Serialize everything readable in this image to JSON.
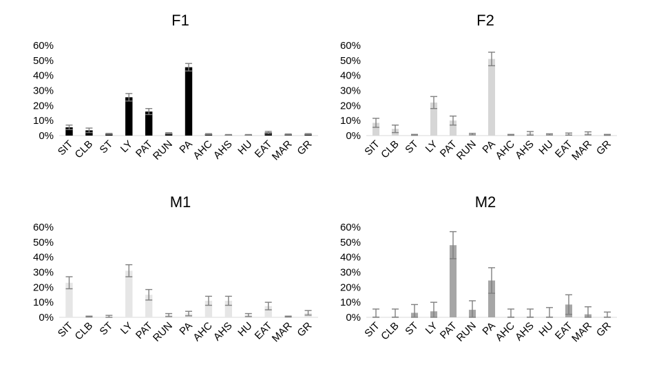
{
  "chart_data": [
    {
      "type": "bar",
      "title": "F1",
      "color": "#000000",
      "categories": [
        "SIT",
        "CLB",
        "ST",
        "LY",
        "PAT",
        "RUN",
        "PA",
        "AHC",
        "AHS",
        "HU",
        "EAT",
        "MAR",
        "GR"
      ],
      "values": [
        5.5,
        3.5,
        1.2,
        25.5,
        16,
        1.5,
        45.5,
        1,
        0.5,
        0.5,
        2,
        0.8,
        1
      ],
      "errors": [
        1.5,
        1.5,
        0.3,
        2.5,
        2,
        0.4,
        2.5,
        0.3,
        0.2,
        0.2,
        0.8,
        0.3,
        0.3
      ],
      "ylim": [
        0,
        60
      ],
      "yticks": [
        "0%",
        "10%",
        "20%",
        "30%",
        "40%",
        "50%",
        "60%"
      ],
      "ytick_values": [
        0,
        10,
        20,
        30,
        40,
        50,
        60
      ],
      "grid": false,
      "legend": "none"
    },
    {
      "type": "bar",
      "title": "F2",
      "color": "#d6d6d6",
      "categories": [
        "SIT",
        "CLB",
        "ST",
        "LY",
        "PAT",
        "RUN",
        "PA",
        "AHC",
        "AHS",
        "HU",
        "EAT",
        "MAR",
        "GR"
      ],
      "values": [
        8.5,
        4.5,
        0.5,
        22,
        10,
        1,
        51,
        0.5,
        1.5,
        0.8,
        1,
        1.5,
        0.5
      ],
      "errors": [
        3,
        2.5,
        0.3,
        4,
        3,
        0.5,
        4.5,
        0.3,
        1.2,
        0.4,
        0.7,
        1,
        0.3
      ],
      "ylim": [
        0,
        60
      ],
      "yticks": [
        "0%",
        "10%",
        "20%",
        "30%",
        "40%",
        "50%",
        "60%"
      ],
      "ytick_values": [
        0,
        10,
        20,
        30,
        40,
        50,
        60
      ],
      "grid": false,
      "legend": "none"
    },
    {
      "type": "bar",
      "title": "M1",
      "color": "#e6e6e6",
      "categories": [
        "SIT",
        "CLB",
        "ST",
        "LY",
        "PAT",
        "RUN",
        "PA",
        "AHC",
        "AHS",
        "HU",
        "EAT",
        "MAR",
        "GR"
      ],
      "values": [
        23,
        0.5,
        0.5,
        31,
        15,
        1.5,
        2.5,
        11,
        11,
        1.5,
        7.5,
        0.5,
        3
      ],
      "errors": [
        4,
        0.3,
        0.8,
        4,
        3.5,
        1,
        1.5,
        3,
        3,
        1,
        2.5,
        0.3,
        1.5
      ],
      "ylim": [
        0,
        60
      ],
      "yticks": [
        "0%",
        "10%",
        "20%",
        "30%",
        "40%",
        "50%",
        "60%"
      ],
      "ytick_values": [
        0,
        10,
        20,
        30,
        40,
        50,
        60
      ],
      "grid": false,
      "legend": "none"
    },
    {
      "type": "bar",
      "title": "M2",
      "color": "#a6a6a6",
      "categories": [
        "SIT",
        "CLB",
        "ST",
        "LY",
        "PAT",
        "RUN",
        "PA",
        "AHC",
        "AHS",
        "HU",
        "EAT",
        "MAR",
        "GR"
      ],
      "values": [
        0.5,
        0.5,
        3,
        4,
        48,
        5,
        24.5,
        0.5,
        0.5,
        0.5,
        8.5,
        2,
        0.5
      ],
      "errors": [
        5,
        5,
        5.5,
        6,
        9,
        6,
        8.5,
        5,
        5,
        6,
        6.5,
        5,
        3
      ],
      "ylim": [
        0,
        60
      ],
      "yticks": [
        "0%",
        "10%",
        "20%",
        "30%",
        "40%",
        "50%",
        "60%"
      ],
      "ytick_values": [
        0,
        10,
        20,
        30,
        40,
        50,
        60
      ],
      "grid": false,
      "legend": "none"
    }
  ]
}
